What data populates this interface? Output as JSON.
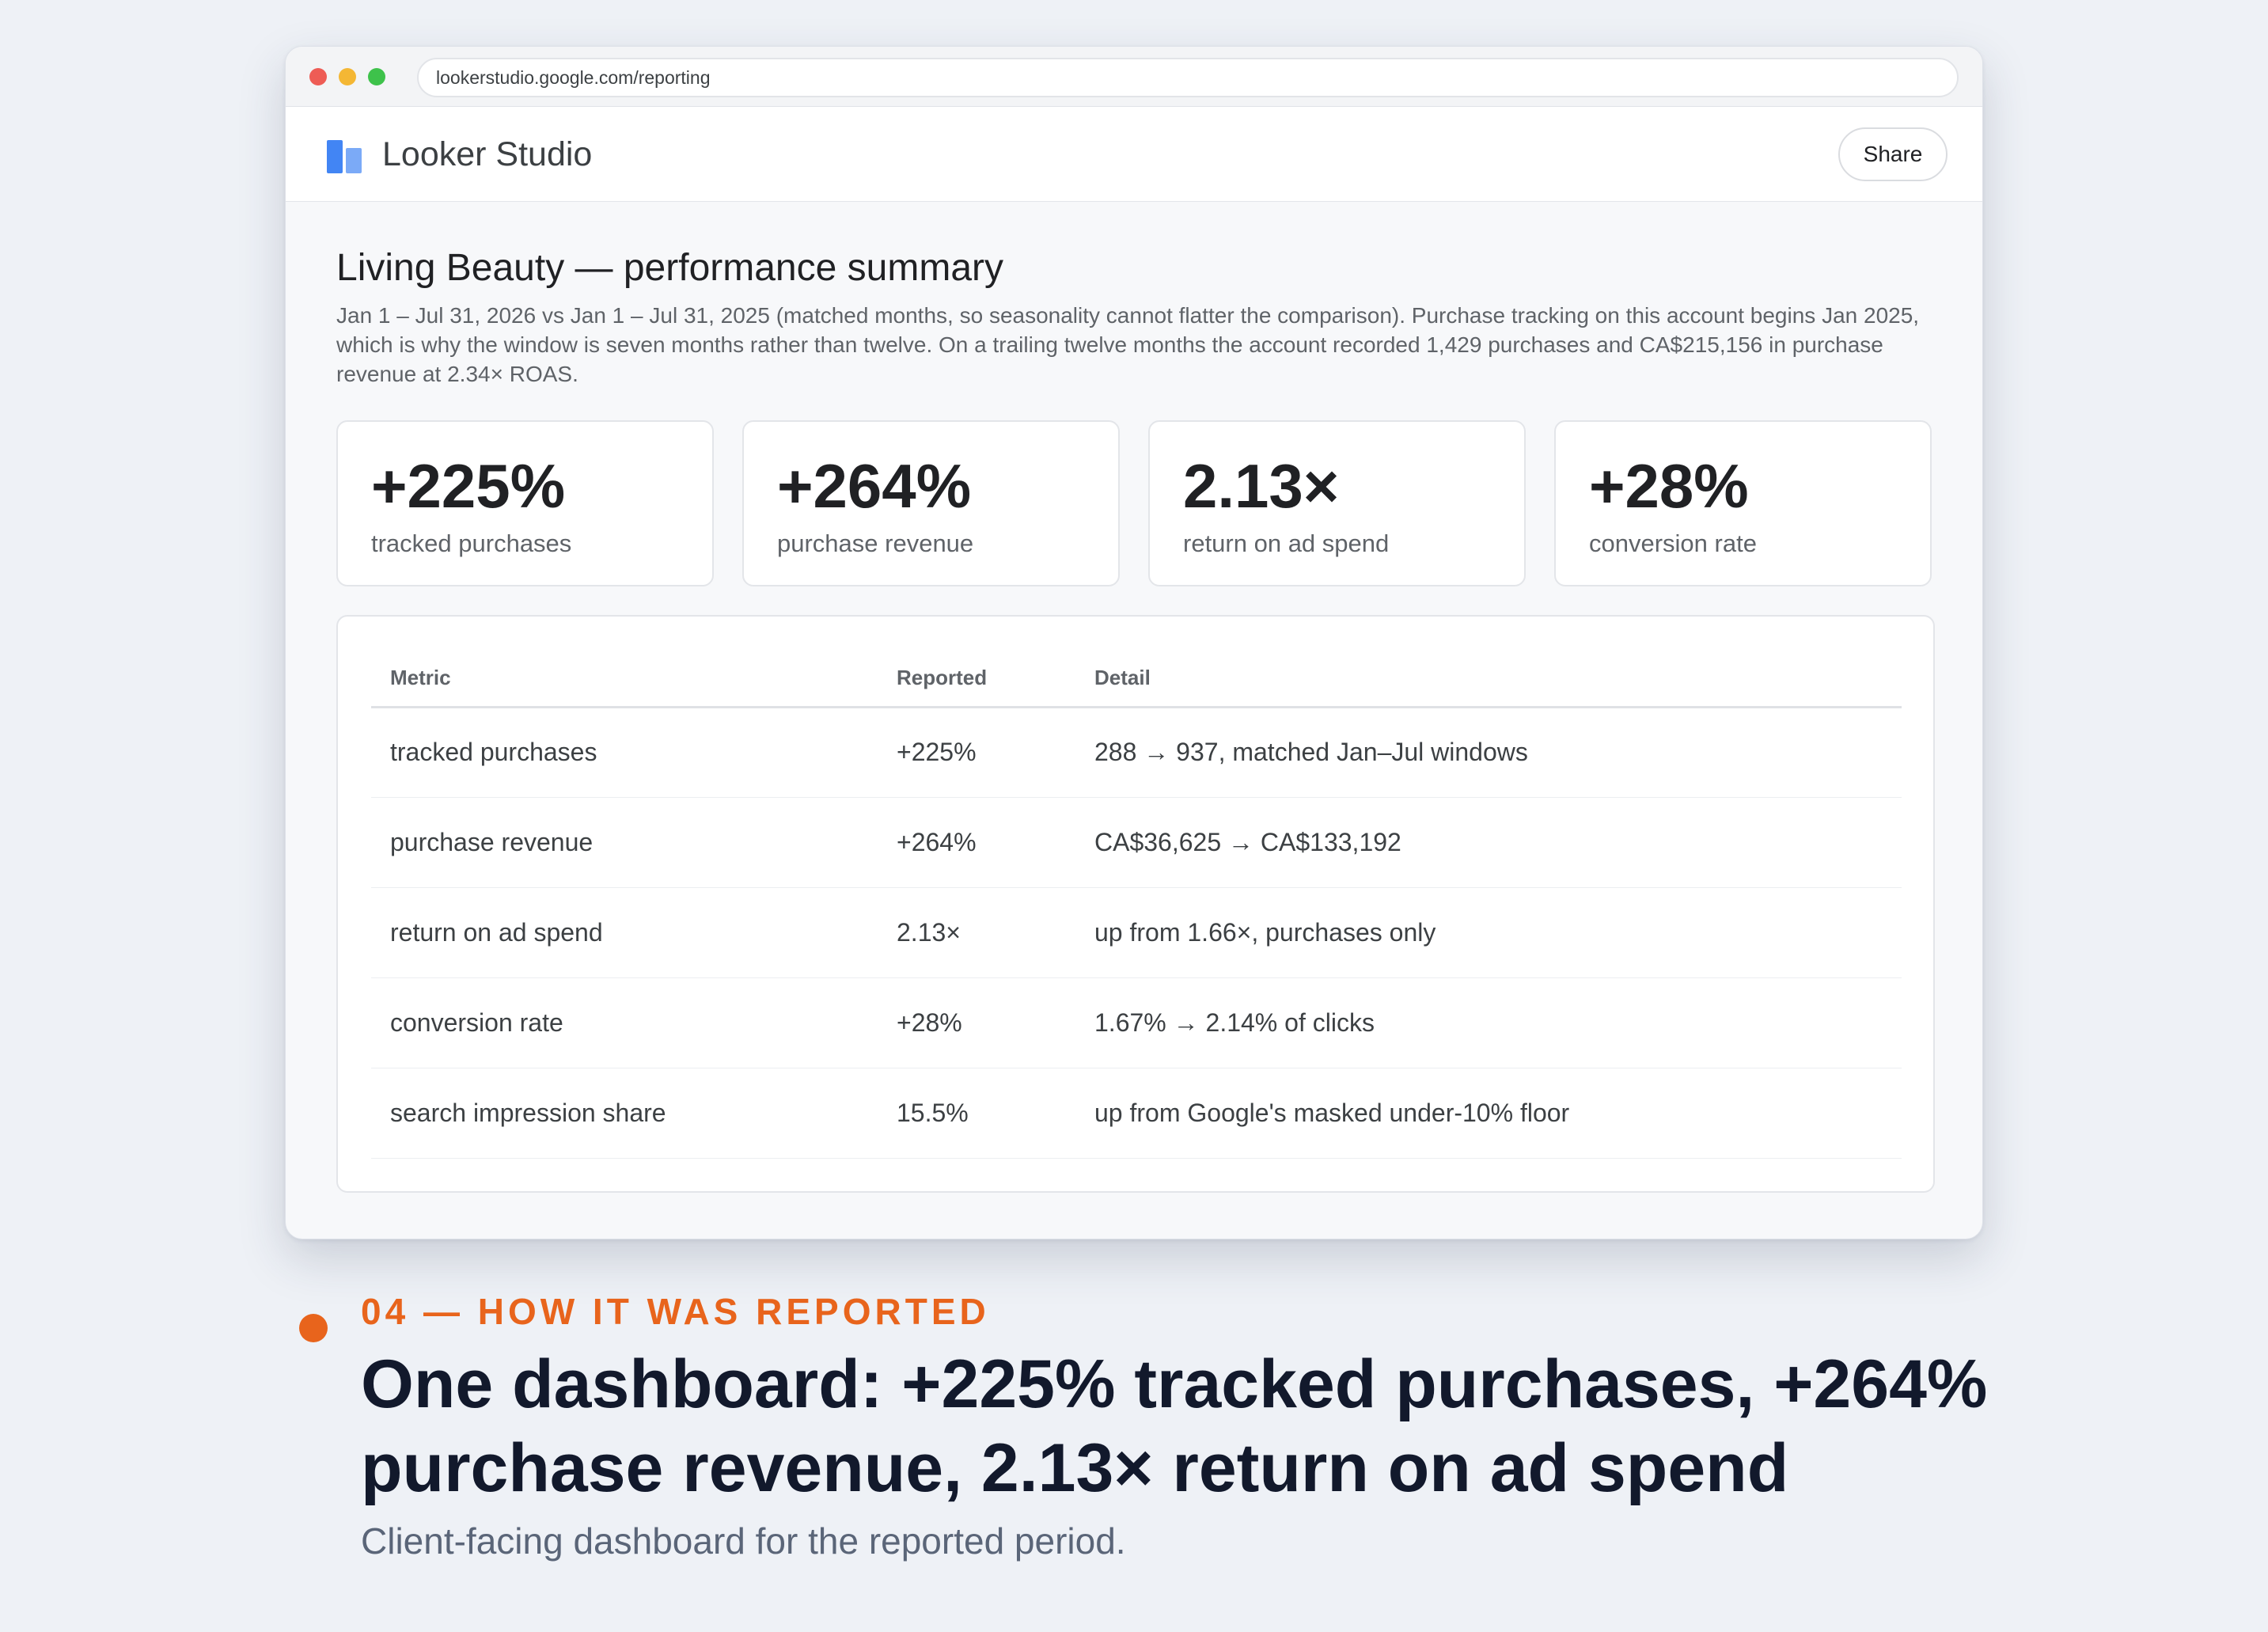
{
  "browser": {
    "url": "lookerstudio.google.com/reporting"
  },
  "app": {
    "name": "Looker Studio",
    "share_label": "Share"
  },
  "report": {
    "title": "Living Beauty — performance summary",
    "description": "Jan 1 – Jul 31, 2026 vs Jan 1 – Jul 31, 2025 (matched months, so seasonality cannot flatter the comparison). Purchase tracking on this account begins Jan 2025, which is why the window is seven months rather than twelve. On a trailing twelve months the account recorded 1,429 purchases and CA$215,156 in purchase revenue at 2.34× ROAS.",
    "kpis": [
      {
        "value": "+225%",
        "label": "tracked purchases"
      },
      {
        "value": "+264%",
        "label": "purchase revenue"
      },
      {
        "value": "2.13×",
        "label": "return on ad spend"
      },
      {
        "value": "+28%",
        "label": "conversion rate"
      }
    ],
    "table": {
      "headers": [
        "Metric",
        "Reported",
        "Detail"
      ],
      "rows": [
        [
          "tracked purchases",
          "+225%",
          "288 → 937, matched Jan–Jul windows"
        ],
        [
          "purchase revenue",
          "+264%",
          "CA$36,625 → CA$133,192"
        ],
        [
          "return on ad spend",
          "2.13×",
          "up from 1.66×, purchases only"
        ],
        [
          "conversion rate",
          "+28%",
          "1.67% → 2.14% of clicks"
        ],
        [
          "search impression share",
          "15.5%",
          "up from Google's masked under-10% floor"
        ]
      ]
    }
  },
  "caption": {
    "eyebrow": "04 — HOW IT WAS REPORTED",
    "headline": "One dashboard: +225% tracked purchases, +264% purchase revenue, 2.13× return on ad spend",
    "subline": "Client-facing dashboard for the reported period."
  },
  "colors": {
    "accent": "#e8641c",
    "logo_primary": "#4285f4",
    "logo_secondary": "#7baaf7"
  }
}
